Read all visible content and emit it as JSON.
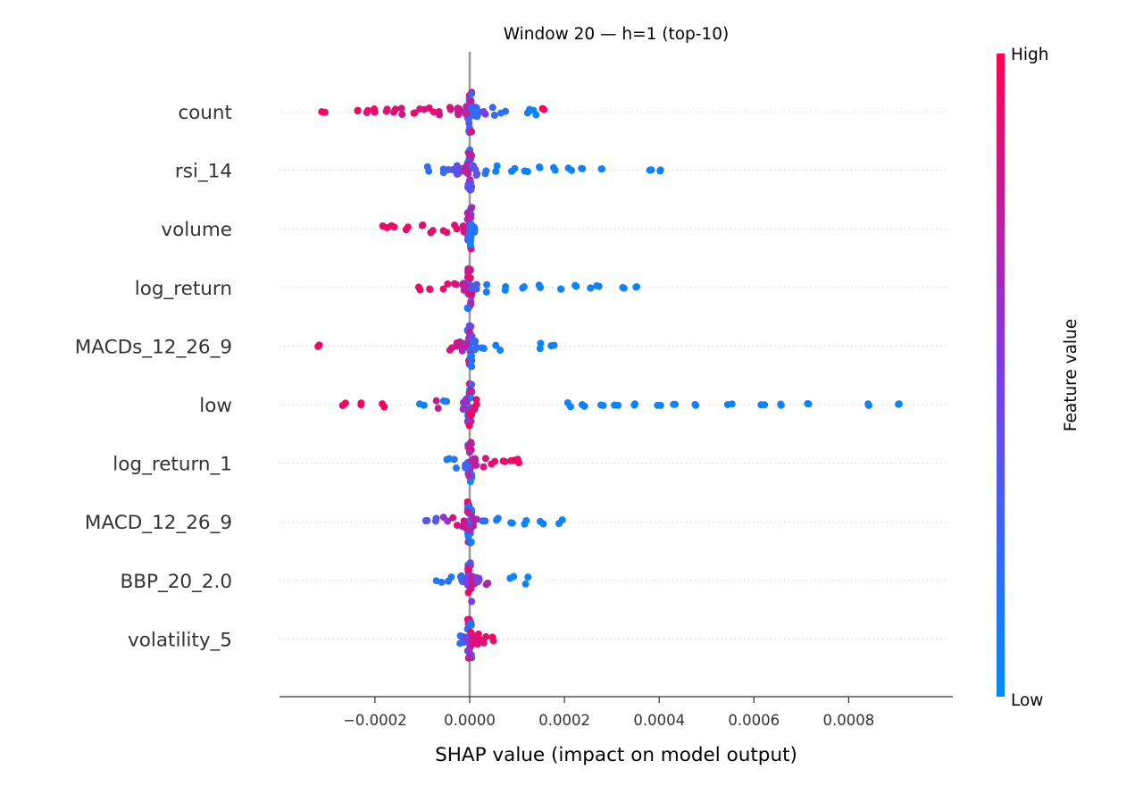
{
  "chart_data": {
    "type": "scatter",
    "subtype": "shap_beeswarm",
    "title": "Window 20 — h=1 (top-10)",
    "xlabel": "SHAP value (impact on model output)",
    "xlim": [
      -0.00038,
      0.00097
    ],
    "xticks": [
      -0.0002,
      0.0,
      0.0002,
      0.0004,
      0.0006,
      0.0008
    ],
    "xtick_labels": [
      "−0.0002",
      "0.0000",
      "0.0002",
      "0.0004",
      "0.0006",
      "0.0008"
    ],
    "colorbar": {
      "label": "Feature value",
      "high": "High",
      "low": "Low",
      "low_color": "#008bfb",
      "high_color": "#ff0052"
    },
    "zero_line_color": "#999999",
    "features": [
      {
        "name": "count",
        "positive": [
          [
            7e-06,
            0.25
          ],
          [
            1e-05,
            0.3
          ],
          [
            1.2e-05,
            0.1
          ],
          [
            1.5e-05,
            0.2
          ],
          [
            3e-05,
            0.5
          ],
          [
            5e-05,
            0.25
          ],
          [
            7e-05,
            0.15
          ],
          [
            0.000126,
            0.1
          ],
          [
            0.00014,
            0.05
          ],
          [
            0.000155,
            0.95
          ]
        ],
        "negative": [
          [
            -0.000307,
            0.95
          ],
          [
            -0.000235,
            0.95
          ],
          [
            -0.00022,
            0.9
          ],
          [
            -0.0002,
            0.9
          ],
          [
            -0.00018,
            0.9
          ],
          [
            -0.00016,
            0.9
          ],
          [
            -0.00014,
            0.85
          ],
          [
            -0.00012,
            0.9
          ],
          [
            -0.0001,
            0.85
          ],
          [
            -8e-05,
            0.9
          ],
          [
            -6e-05,
            0.85
          ],
          [
            -4e-05,
            0.85
          ],
          [
            -2e-05,
            0.8
          ],
          [
            -1e-05,
            0.7
          ]
        ]
      },
      {
        "name": "rsi_14",
        "positive": [
          [
            1e-05,
            0.35
          ],
          [
            3e-05,
            0.15
          ],
          [
            6e-05,
            0.05
          ],
          [
            9e-05,
            0.05
          ],
          [
            0.00012,
            0.05
          ],
          [
            0.00015,
            0.05
          ],
          [
            0.00018,
            0.05
          ],
          [
            0.00021,
            0.05
          ],
          [
            0.00024,
            0.05
          ],
          [
            0.00028,
            0.05
          ],
          [
            0.00038,
            0.05
          ],
          [
            0.0004,
            0.05
          ]
        ],
        "negative": [
          [
            -8.5e-05,
            0.2
          ],
          [
            -6e-05,
            0.2
          ],
          [
            -4e-05,
            0.3
          ],
          [
            -2.5e-05,
            0.4
          ],
          [
            -1e-05,
            0.5
          ],
          [
            -5e-06,
            0.75
          ]
        ]
      },
      {
        "name": "volume",
        "positive": [
          [
            3e-06,
            0.2
          ],
          [
            7e-06,
            0.15
          ]
        ],
        "negative": [
          [
            -0.00018,
            0.95
          ],
          [
            -0.00016,
            0.95
          ],
          [
            -0.00013,
            0.95
          ],
          [
            -0.0001,
            0.9
          ],
          [
            -8e-05,
            0.9
          ],
          [
            -5e-05,
            0.9
          ],
          [
            -3e-05,
            0.9
          ],
          [
            -1e-05,
            0.85
          ]
        ]
      },
      {
        "name": "log_return",
        "positive": [
          [
            1e-05,
            0.3
          ],
          [
            4e-05,
            0.1
          ],
          [
            8e-05,
            0.05
          ],
          [
            0.00011,
            0.05
          ],
          [
            0.00015,
            0.05
          ],
          [
            0.00019,
            0.05
          ],
          [
            0.00022,
            0.05
          ],
          [
            0.00025,
            0.05
          ],
          [
            0.00027,
            0.05
          ],
          [
            0.000325,
            0.05
          ],
          [
            0.000355,
            0.05
          ]
        ],
        "negative": [
          [
            -0.000108,
            0.95
          ],
          [
            -8e-05,
            0.9
          ],
          [
            -5e-05,
            0.9
          ],
          [
            -3e-05,
            0.85
          ],
          [
            -1e-05,
            0.75
          ]
        ]
      },
      {
        "name": "MACDs_12_26_9",
        "positive": [
          [
            1e-05,
            0.2
          ],
          [
            3e-05,
            0.1
          ],
          [
            6e-05,
            0.05
          ],
          [
            0.000145,
            0.05
          ],
          [
            0.000175,
            0.05
          ]
        ],
        "negative": [
          [
            -0.000322,
            0.95
          ],
          [
            -4e-05,
            0.85
          ],
          [
            -2.5e-05,
            0.8
          ],
          [
            -1e-05,
            0.7
          ]
        ]
      },
      {
        "name": "low",
        "positive": [
          [
            1e-05,
            0.9
          ],
          [
            0.00021,
            0.05
          ],
          [
            0.00024,
            0.05
          ],
          [
            0.00028,
            0.05
          ],
          [
            0.00031,
            0.05
          ],
          [
            0.00035,
            0.05
          ],
          [
            0.0004,
            0.05
          ],
          [
            0.00043,
            0.05
          ],
          [
            0.00048,
            0.05
          ],
          [
            0.00055,
            0.05
          ],
          [
            0.00062,
            0.05
          ],
          [
            0.00066,
            0.05
          ],
          [
            0.000715,
            0.05
          ],
          [
            0.000845,
            0.05
          ],
          [
            0.00091,
            0.05
          ]
        ],
        "negative": [
          [
            -0.000265,
            0.95
          ],
          [
            -0.00023,
            0.95
          ],
          [
            -0.00018,
            0.95
          ],
          [
            -0.0001,
            0.05
          ],
          [
            -7e-05,
            0.8
          ],
          [
            -5e-05,
            0.1
          ],
          [
            -1e-05,
            0.6
          ]
        ]
      },
      {
        "name": "log_return_1",
        "positive": [
          [
            1e-05,
            0.75
          ],
          [
            3e-05,
            0.85
          ],
          [
            5e-05,
            0.9
          ],
          [
            7e-05,
            0.9
          ],
          [
            9e-05,
            0.95
          ],
          [
            0.000105,
            0.95
          ]
        ],
        "negative": [
          [
            -4.5e-05,
            0.1
          ],
          [
            -3e-05,
            0.15
          ],
          [
            -1e-05,
            0.25
          ]
        ]
      },
      {
        "name": "MACD_12_26_9",
        "positive": [
          [
            1e-05,
            0.7
          ],
          [
            3e-05,
            0.2
          ],
          [
            6e-05,
            0.1
          ],
          [
            9e-05,
            0.05
          ],
          [
            0.00012,
            0.05
          ],
          [
            0.00015,
            0.05
          ],
          [
            0.00019,
            0.05
          ]
        ],
        "negative": [
          [
            -9.5e-05,
            0.35
          ],
          [
            -7e-05,
            0.35
          ],
          [
            -5e-05,
            0.6
          ],
          [
            -3e-05,
            0.85
          ],
          [
            -1e-05,
            0.8
          ]
        ]
      },
      {
        "name": "BBP_20_2.0",
        "positive": [
          [
            1e-05,
            0.8
          ],
          [
            2e-05,
            0.5
          ],
          [
            4e-05,
            0.7
          ],
          [
            9e-05,
            0.05
          ],
          [
            0.00012,
            0.05
          ]
        ],
        "negative": [
          [
            -6.5e-05,
            0.1
          ],
          [
            -4e-05,
            0.15
          ],
          [
            -2e-05,
            0.2
          ],
          [
            -5e-06,
            0.5
          ]
        ]
      },
      {
        "name": "volatility_5",
        "positive": [
          [
            1e-05,
            0.85
          ],
          [
            2e-05,
            0.9
          ],
          [
            3.5e-05,
            0.9
          ],
          [
            4.5e-05,
            0.95
          ]
        ],
        "negative": [
          [
            -1.5e-05,
            0.2
          ],
          [
            -5e-06,
            0.5
          ]
        ]
      }
    ]
  }
}
